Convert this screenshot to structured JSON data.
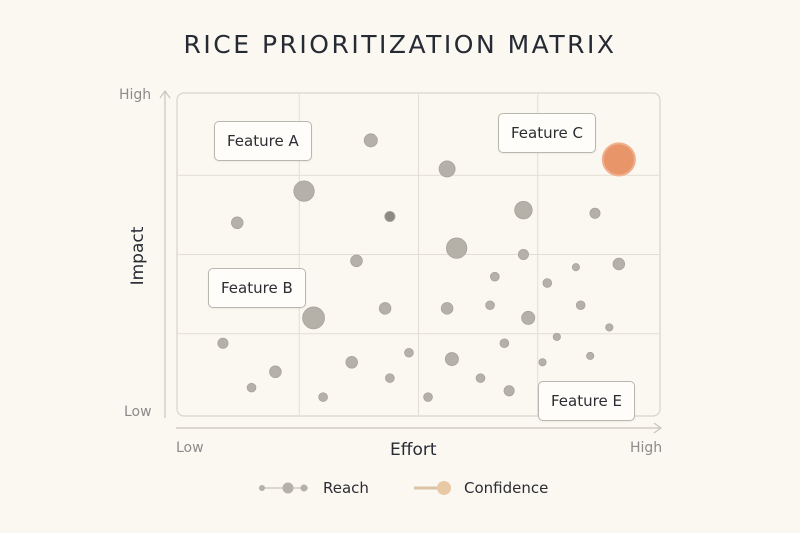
{
  "page": {
    "title": "RICE PRIORITIZATION MATRIX"
  },
  "colors": {
    "background": "#fbf8f1",
    "bubble": "#b5b1a8",
    "bubble_dark": "#8d8a84",
    "highlight": "#e8956a",
    "grid": "#e2ded5",
    "axis": "#c9c5bd"
  },
  "chart_data": {
    "type": "scatter",
    "title": "RICE PRIORITIZATION MATRIX",
    "xlabel": "Effort",
    "ylabel": "Impact",
    "x_ticks": [
      "Low",
      "High"
    ],
    "y_ticks": [
      "High",
      "Low"
    ],
    "xlim": [
      0,
      100
    ],
    "ylim": [
      0,
      100
    ],
    "grid": true,
    "legend": {
      "placement": "bottom",
      "items": [
        {
          "label": "Reach",
          "icon": "size-scale-icon"
        },
        {
          "label": "Confidence",
          "icon": "color-scale-icon"
        }
      ]
    },
    "points": [
      {
        "x": 92,
        "y": 80,
        "reach": 22,
        "highlight": true
      },
      {
        "x": 26,
        "y": 70,
        "reach": 14
      },
      {
        "x": 28,
        "y": 30,
        "reach": 15
      },
      {
        "x": 40,
        "y": 86,
        "reach": 9
      },
      {
        "x": 56,
        "y": 77,
        "reach": 11
      },
      {
        "x": 72,
        "y": 64,
        "reach": 12
      },
      {
        "x": 87,
        "y": 63,
        "reach": 7
      },
      {
        "x": 12,
        "y": 60,
        "reach": 8
      },
      {
        "x": 44,
        "y": 62,
        "reach": 7,
        "dark": true
      },
      {
        "x": 58,
        "y": 52,
        "reach": 14
      },
      {
        "x": 37,
        "y": 48,
        "reach": 8
      },
      {
        "x": 72,
        "y": 50,
        "reach": 7
      },
      {
        "x": 66,
        "y": 43,
        "reach": 6
      },
      {
        "x": 77,
        "y": 41,
        "reach": 6
      },
      {
        "x": 83,
        "y": 46,
        "reach": 5
      },
      {
        "x": 92,
        "y": 47,
        "reach": 8
      },
      {
        "x": 43,
        "y": 33,
        "reach": 8
      },
      {
        "x": 56,
        "y": 33,
        "reach": 8
      },
      {
        "x": 65,
        "y": 34,
        "reach": 6
      },
      {
        "x": 73,
        "y": 30,
        "reach": 9
      },
      {
        "x": 84,
        "y": 34,
        "reach": 6
      },
      {
        "x": 90,
        "y": 27,
        "reach": 5
      },
      {
        "x": 79,
        "y": 24,
        "reach": 5
      },
      {
        "x": 9,
        "y": 22,
        "reach": 7
      },
      {
        "x": 68,
        "y": 22,
        "reach": 6
      },
      {
        "x": 48,
        "y": 19,
        "reach": 6
      },
      {
        "x": 36,
        "y": 16,
        "reach": 8
      },
      {
        "x": 57,
        "y": 17,
        "reach": 9
      },
      {
        "x": 20,
        "y": 13,
        "reach": 8
      },
      {
        "x": 86,
        "y": 18,
        "reach": 5
      },
      {
        "x": 76,
        "y": 16,
        "reach": 5
      },
      {
        "x": 44,
        "y": 11,
        "reach": 6
      },
      {
        "x": 63,
        "y": 11,
        "reach": 6
      },
      {
        "x": 15,
        "y": 8,
        "reach": 6
      },
      {
        "x": 69,
        "y": 7,
        "reach": 7
      },
      {
        "x": 30,
        "y": 5,
        "reach": 6
      },
      {
        "x": 52,
        "y": 5,
        "reach": 6
      }
    ],
    "annotations": [
      {
        "label": "Feature A",
        "x": 18,
        "y": 85
      },
      {
        "label": "Feature B",
        "x": 17,
        "y": 40
      },
      {
        "label": "Feature C",
        "x": 78,
        "y": 88
      },
      {
        "label": "Feature E",
        "x": 82,
        "y": 3
      }
    ]
  }
}
